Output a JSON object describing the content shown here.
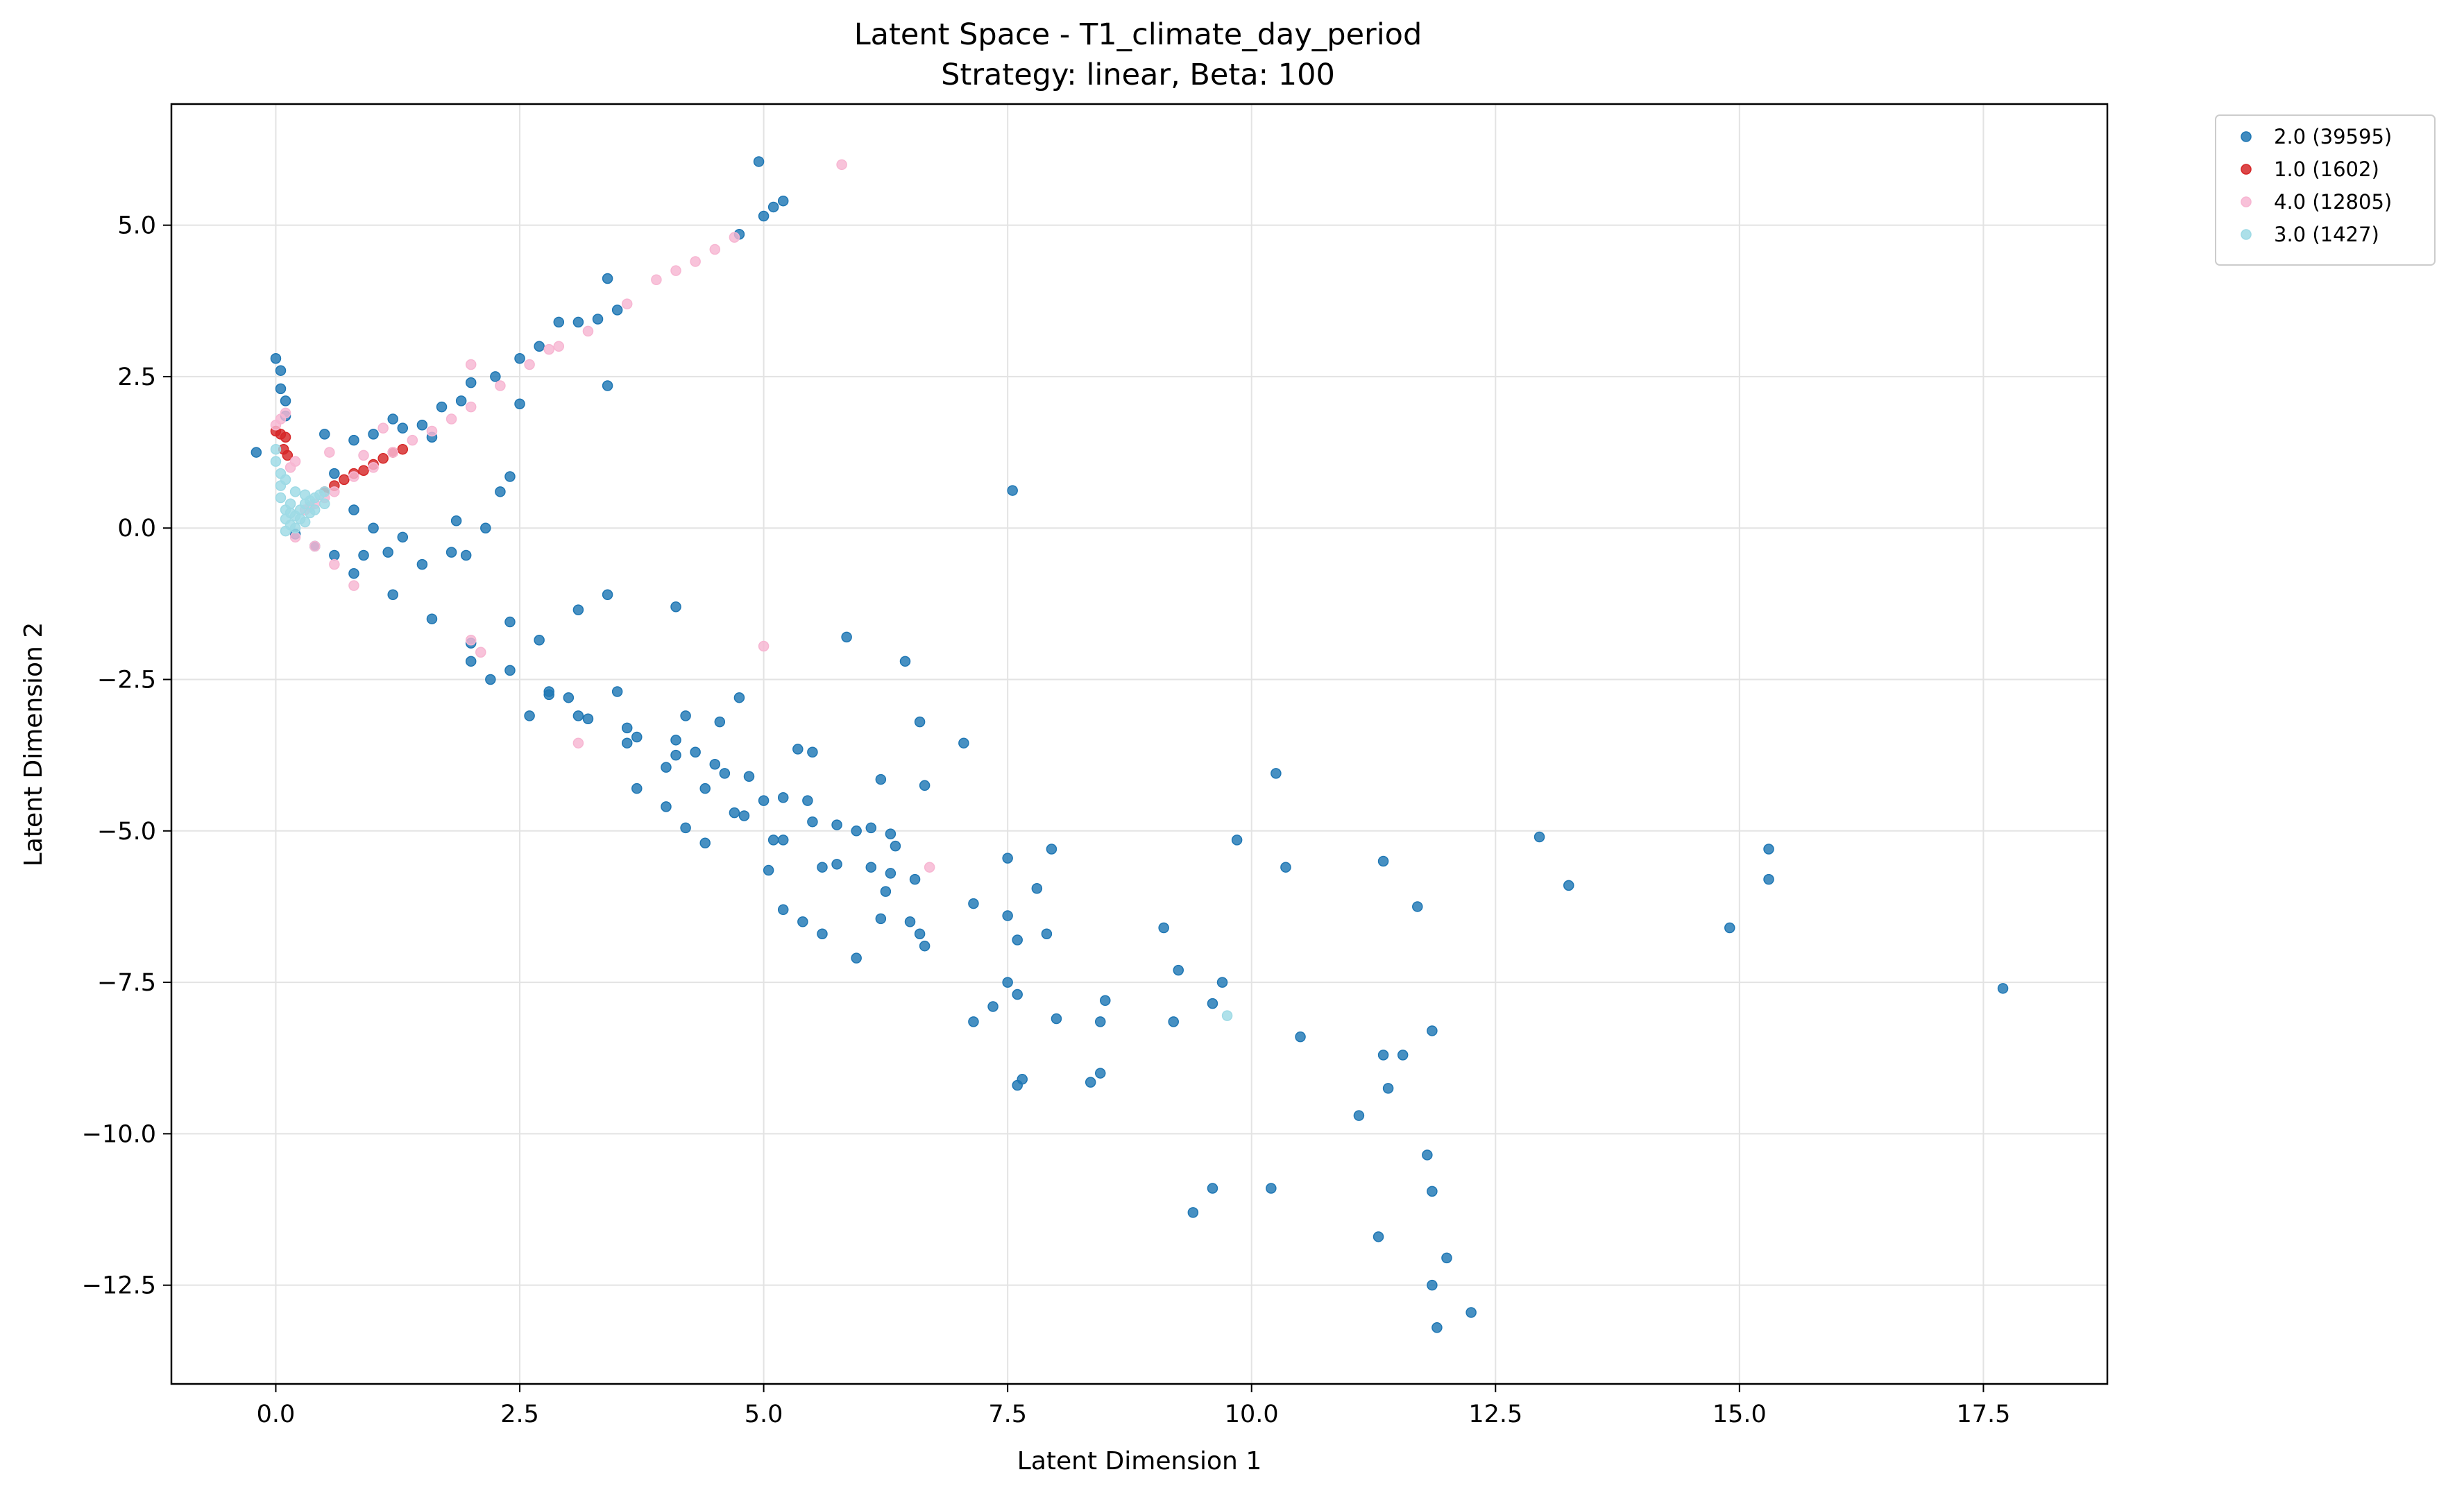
{
  "chart_data": {
    "type": "scatter",
    "title": "Latent Space - T1_climate_day_period",
    "subtitle": "Strategy: linear, Beta: 100",
    "xlabel": "Latent Dimension 1",
    "ylabel": "Latent Dimension 2",
    "xlim": [
      -1.07,
      18.77
    ],
    "ylim": [
      -14.13,
      7.0
    ],
    "xticks": [
      0.0,
      2.5,
      5.0,
      7.5,
      10.0,
      12.5,
      15.0,
      17.5
    ],
    "xtick_labels": [
      "0.0",
      "2.5",
      "5.0",
      "7.5",
      "10.0",
      "12.5",
      "15.0",
      "17.5"
    ],
    "yticks": [
      5.0,
      2.5,
      0.0,
      -2.5,
      -5.0,
      -7.5,
      -10.0,
      -12.5
    ],
    "ytick_labels": [
      "5.0",
      "2.5",
      "0.0",
      "−2.5",
      "−5.0",
      "−7.5",
      "−10.0",
      "−12.5"
    ],
    "grid": true,
    "legend_position": "outside top-right",
    "series": [
      {
        "name": "2.0 (39595)",
        "color": "#1f77b4",
        "points": [
          [
            4.95,
            6.05
          ],
          [
            5.2,
            5.4
          ],
          [
            5.1,
            5.3
          ],
          [
            5.0,
            5.15
          ],
          [
            4.75,
            4.85
          ],
          [
            3.4,
            4.12
          ],
          [
            3.5,
            3.6
          ],
          [
            3.3,
            3.45
          ],
          [
            2.9,
            3.4
          ],
          [
            3.1,
            3.4
          ],
          [
            2.7,
            3.0
          ],
          [
            2.5,
            2.8
          ],
          [
            2.25,
            2.5
          ],
          [
            2.0,
            2.4
          ],
          [
            3.4,
            2.35
          ],
          [
            2.5,
            2.05
          ],
          [
            2.4,
            0.85
          ],
          [
            1.85,
            0.12
          ],
          [
            1.95,
            -0.45
          ],
          [
            2.15,
            0.0
          ],
          [
            2.3,
            0.6
          ],
          [
            1.6,
            1.5
          ],
          [
            1.2,
            1.8
          ],
          [
            1.3,
            1.65
          ],
          [
            1.5,
            1.7
          ],
          [
            1.7,
            2.0
          ],
          [
            1.9,
            2.1
          ],
          [
            0.8,
            1.45
          ],
          [
            1.0,
            1.55
          ],
          [
            0.5,
            1.55
          ],
          [
            -0.2,
            1.25
          ],
          [
            0.0,
            2.8
          ],
          [
            0.05,
            2.6
          ],
          [
            0.05,
            2.3
          ],
          [
            0.1,
            2.1
          ],
          [
            0.1,
            1.85
          ],
          [
            0.6,
            0.9
          ],
          [
            0.8,
            0.3
          ],
          [
            1.0,
            0.0
          ],
          [
            1.5,
            -0.6
          ],
          [
            1.3,
            -0.15
          ],
          [
            1.8,
            -0.4
          ],
          [
            1.15,
            -0.4
          ],
          [
            0.9,
            -0.45
          ],
          [
            0.6,
            -0.45
          ],
          [
            0.2,
            -0.1
          ],
          [
            0.4,
            -0.3
          ],
          [
            0.8,
            -0.75
          ],
          [
            1.2,
            -1.1
          ],
          [
            1.6,
            -1.5
          ],
          [
            2.0,
            -1.9
          ],
          [
            2.4,
            -2.35
          ],
          [
            2.8,
            -2.75
          ],
          [
            3.2,
            -3.15
          ],
          [
            3.6,
            -3.55
          ],
          [
            4.0,
            -3.95
          ],
          [
            4.4,
            -4.3
          ],
          [
            4.8,
            -4.75
          ],
          [
            5.2,
            -5.15
          ],
          [
            5.6,
            -5.6
          ],
          [
            5.6,
            -6.7
          ],
          [
            5.4,
            -6.5
          ],
          [
            5.2,
            -6.3
          ],
          [
            3.4,
            -1.1
          ],
          [
            3.1,
            -1.35
          ],
          [
            2.4,
            -1.55
          ],
          [
            2.7,
            -1.85
          ],
          [
            2.0,
            -2.2
          ],
          [
            2.2,
            -2.5
          ],
          [
            2.8,
            -2.7
          ],
          [
            3.0,
            -2.8
          ],
          [
            3.5,
            -2.7
          ],
          [
            3.1,
            -3.1
          ],
          [
            2.6,
            -3.1
          ],
          [
            3.6,
            -3.3
          ],
          [
            3.7,
            -3.45
          ],
          [
            4.1,
            -3.5
          ],
          [
            4.3,
            -3.7
          ],
          [
            4.5,
            -3.9
          ],
          [
            4.1,
            -3.75
          ],
          [
            4.2,
            -3.1
          ],
          [
            4.55,
            -3.2
          ],
          [
            4.75,
            -2.8
          ],
          [
            5.35,
            -3.65
          ],
          [
            5.5,
            -3.7
          ],
          [
            4.85,
            -4.1
          ],
          [
            4.6,
            -4.05
          ],
          [
            5.0,
            -4.5
          ],
          [
            5.2,
            -4.45
          ],
          [
            4.7,
            -4.7
          ],
          [
            5.45,
            -4.5
          ],
          [
            5.5,
            -4.85
          ],
          [
            5.75,
            -4.9
          ],
          [
            5.95,
            -5.0
          ],
          [
            6.1,
            -4.95
          ],
          [
            6.3,
            -5.05
          ],
          [
            6.35,
            -5.25
          ],
          [
            6.1,
            -5.6
          ],
          [
            6.3,
            -5.7
          ],
          [
            6.25,
            -6.0
          ],
          [
            6.2,
            -6.45
          ],
          [
            6.5,
            -6.5
          ],
          [
            6.6,
            -6.7
          ],
          [
            6.65,
            -6.9
          ],
          [
            5.95,
            -7.1
          ],
          [
            5.75,
            -5.55
          ],
          [
            6.55,
            -5.8
          ],
          [
            5.1,
            -5.15
          ],
          [
            5.05,
            -5.65
          ],
          [
            4.2,
            -4.95
          ],
          [
            4.4,
            -5.2
          ],
          [
            4.0,
            -4.6
          ],
          [
            3.7,
            -4.3
          ],
          [
            5.85,
            -1.8
          ],
          [
            6.45,
            -2.2
          ],
          [
            6.6,
            -3.2
          ],
          [
            7.05,
            -3.55
          ],
          [
            6.65,
            -4.25
          ],
          [
            6.2,
            -4.15
          ],
          [
            7.55,
            0.62
          ],
          [
            4.1,
            -1.3
          ],
          [
            7.15,
            -6.2
          ],
          [
            7.5,
            -5.45
          ],
          [
            7.5,
            -6.4
          ],
          [
            7.8,
            -5.95
          ],
          [
            7.95,
            -5.3
          ],
          [
            7.6,
            -6.8
          ],
          [
            7.9,
            -6.7
          ],
          [
            7.5,
            -7.5
          ],
          [
            7.6,
            -7.7
          ],
          [
            7.35,
            -7.9
          ],
          [
            7.15,
            -8.15
          ],
          [
            8.0,
            -8.1
          ],
          [
            8.5,
            -7.8
          ],
          [
            8.45,
            -8.15
          ],
          [
            7.65,
            -9.1
          ],
          [
            7.6,
            -9.2
          ],
          [
            8.35,
            -9.15
          ],
          [
            8.45,
            -9.0
          ],
          [
            9.1,
            -6.6
          ],
          [
            9.25,
            -7.3
          ],
          [
            9.2,
            -8.15
          ],
          [
            9.6,
            -7.85
          ],
          [
            9.7,
            -7.5
          ],
          [
            9.85,
            -5.15
          ],
          [
            10.25,
            -4.05
          ],
          [
            10.35,
            -5.6
          ],
          [
            10.5,
            -8.4
          ],
          [
            9.6,
            -10.9
          ],
          [
            9.4,
            -11.3
          ],
          [
            10.2,
            -10.9
          ],
          [
            11.1,
            -9.7
          ],
          [
            11.35,
            -8.7
          ],
          [
            11.55,
            -8.7
          ],
          [
            11.4,
            -9.25
          ],
          [
            11.85,
            -8.3
          ],
          [
            11.35,
            -5.5
          ],
          [
            11.7,
            -6.25
          ],
          [
            11.8,
            -10.35
          ],
          [
            11.85,
            -10.95
          ],
          [
            11.3,
            -11.7
          ],
          [
            11.85,
            -12.5
          ],
          [
            12.0,
            -12.05
          ],
          [
            11.9,
            -13.2
          ],
          [
            12.25,
            -12.95
          ],
          [
            12.95,
            -5.1
          ],
          [
            13.25,
            -5.9
          ],
          [
            14.9,
            -6.6
          ],
          [
            15.3,
            -5.3
          ],
          [
            15.3,
            -5.8
          ],
          [
            17.7,
            -7.6
          ]
        ]
      },
      {
        "name": "1.0 (1602)",
        "color": "#d62728",
        "points": [
          [
            0.0,
            1.6
          ],
          [
            0.05,
            1.55
          ],
          [
            0.1,
            1.5
          ],
          [
            0.08,
            1.3
          ],
          [
            0.12,
            1.2
          ],
          [
            0.6,
            0.7
          ],
          [
            0.8,
            0.9
          ],
          [
            1.0,
            1.05
          ],
          [
            1.1,
            1.15
          ],
          [
            1.2,
            1.25
          ],
          [
            0.9,
            0.95
          ],
          [
            0.7,
            0.8
          ],
          [
            1.3,
            1.3
          ],
          [
            0.5,
            0.6
          ]
        ]
      },
      {
        "name": "4.0 (12805)",
        "color": "#f7b6d2",
        "points": [
          [
            5.8,
            6.0
          ],
          [
            4.7,
            4.8
          ],
          [
            4.5,
            4.6
          ],
          [
            4.3,
            4.4
          ],
          [
            4.1,
            4.25
          ],
          [
            3.9,
            4.1
          ],
          [
            3.6,
            3.7
          ],
          [
            3.2,
            3.25
          ],
          [
            2.9,
            3.0
          ],
          [
            2.6,
            2.7
          ],
          [
            2.8,
            2.95
          ],
          [
            2.0,
            2.7
          ],
          [
            2.3,
            2.35
          ],
          [
            2.0,
            2.0
          ],
          [
            1.8,
            1.8
          ],
          [
            1.6,
            1.6
          ],
          [
            1.4,
            1.45
          ],
          [
            1.2,
            1.25
          ],
          [
            1.0,
            1.0
          ],
          [
            0.8,
            0.85
          ],
          [
            0.6,
            0.6
          ],
          [
            0.5,
            0.5
          ],
          [
            0.4,
            0.4
          ],
          [
            0.55,
            1.25
          ],
          [
            0.35,
            0.35
          ],
          [
            0.3,
            0.3
          ],
          [
            1.1,
            1.65
          ],
          [
            0.9,
            1.2
          ],
          [
            0.2,
            1.1
          ],
          [
            0.0,
            1.7
          ],
          [
            0.05,
            1.8
          ],
          [
            0.1,
            1.9
          ],
          [
            0.15,
            1.0
          ],
          [
            0.2,
            -0.15
          ],
          [
            0.4,
            -0.3
          ],
          [
            0.6,
            -0.6
          ],
          [
            0.8,
            -0.95
          ],
          [
            2.0,
            -1.85
          ],
          [
            2.1,
            -2.05
          ],
          [
            3.1,
            -3.55
          ],
          [
            5.0,
            -1.95
          ],
          [
            6.7,
            -5.6
          ]
        ]
      },
      {
        "name": "3.0 (1427)",
        "color": "#9edae5",
        "points": [
          [
            0.0,
            1.3
          ],
          [
            0.0,
            1.1
          ],
          [
            0.05,
            0.9
          ],
          [
            0.05,
            0.7
          ],
          [
            0.05,
            0.5
          ],
          [
            0.1,
            0.3
          ],
          [
            0.1,
            0.15
          ],
          [
            0.15,
            0.05
          ],
          [
            0.2,
            0.2
          ],
          [
            0.25,
            0.3
          ],
          [
            0.3,
            0.4
          ],
          [
            0.35,
            0.45
          ],
          [
            0.4,
            0.5
          ],
          [
            0.45,
            0.55
          ],
          [
            0.5,
            0.6
          ],
          [
            0.3,
            0.1
          ],
          [
            0.2,
            0.0
          ],
          [
            0.1,
            -0.05
          ],
          [
            0.25,
            0.15
          ],
          [
            0.35,
            0.25
          ],
          [
            0.15,
            0.4
          ],
          [
            0.2,
            0.6
          ],
          [
            0.1,
            0.8
          ],
          [
            0.4,
            0.3
          ],
          [
            0.5,
            0.4
          ],
          [
            0.3,
            0.55
          ],
          [
            0.15,
            0.25
          ],
          [
            9.75,
            -8.05
          ]
        ]
      }
    ]
  }
}
